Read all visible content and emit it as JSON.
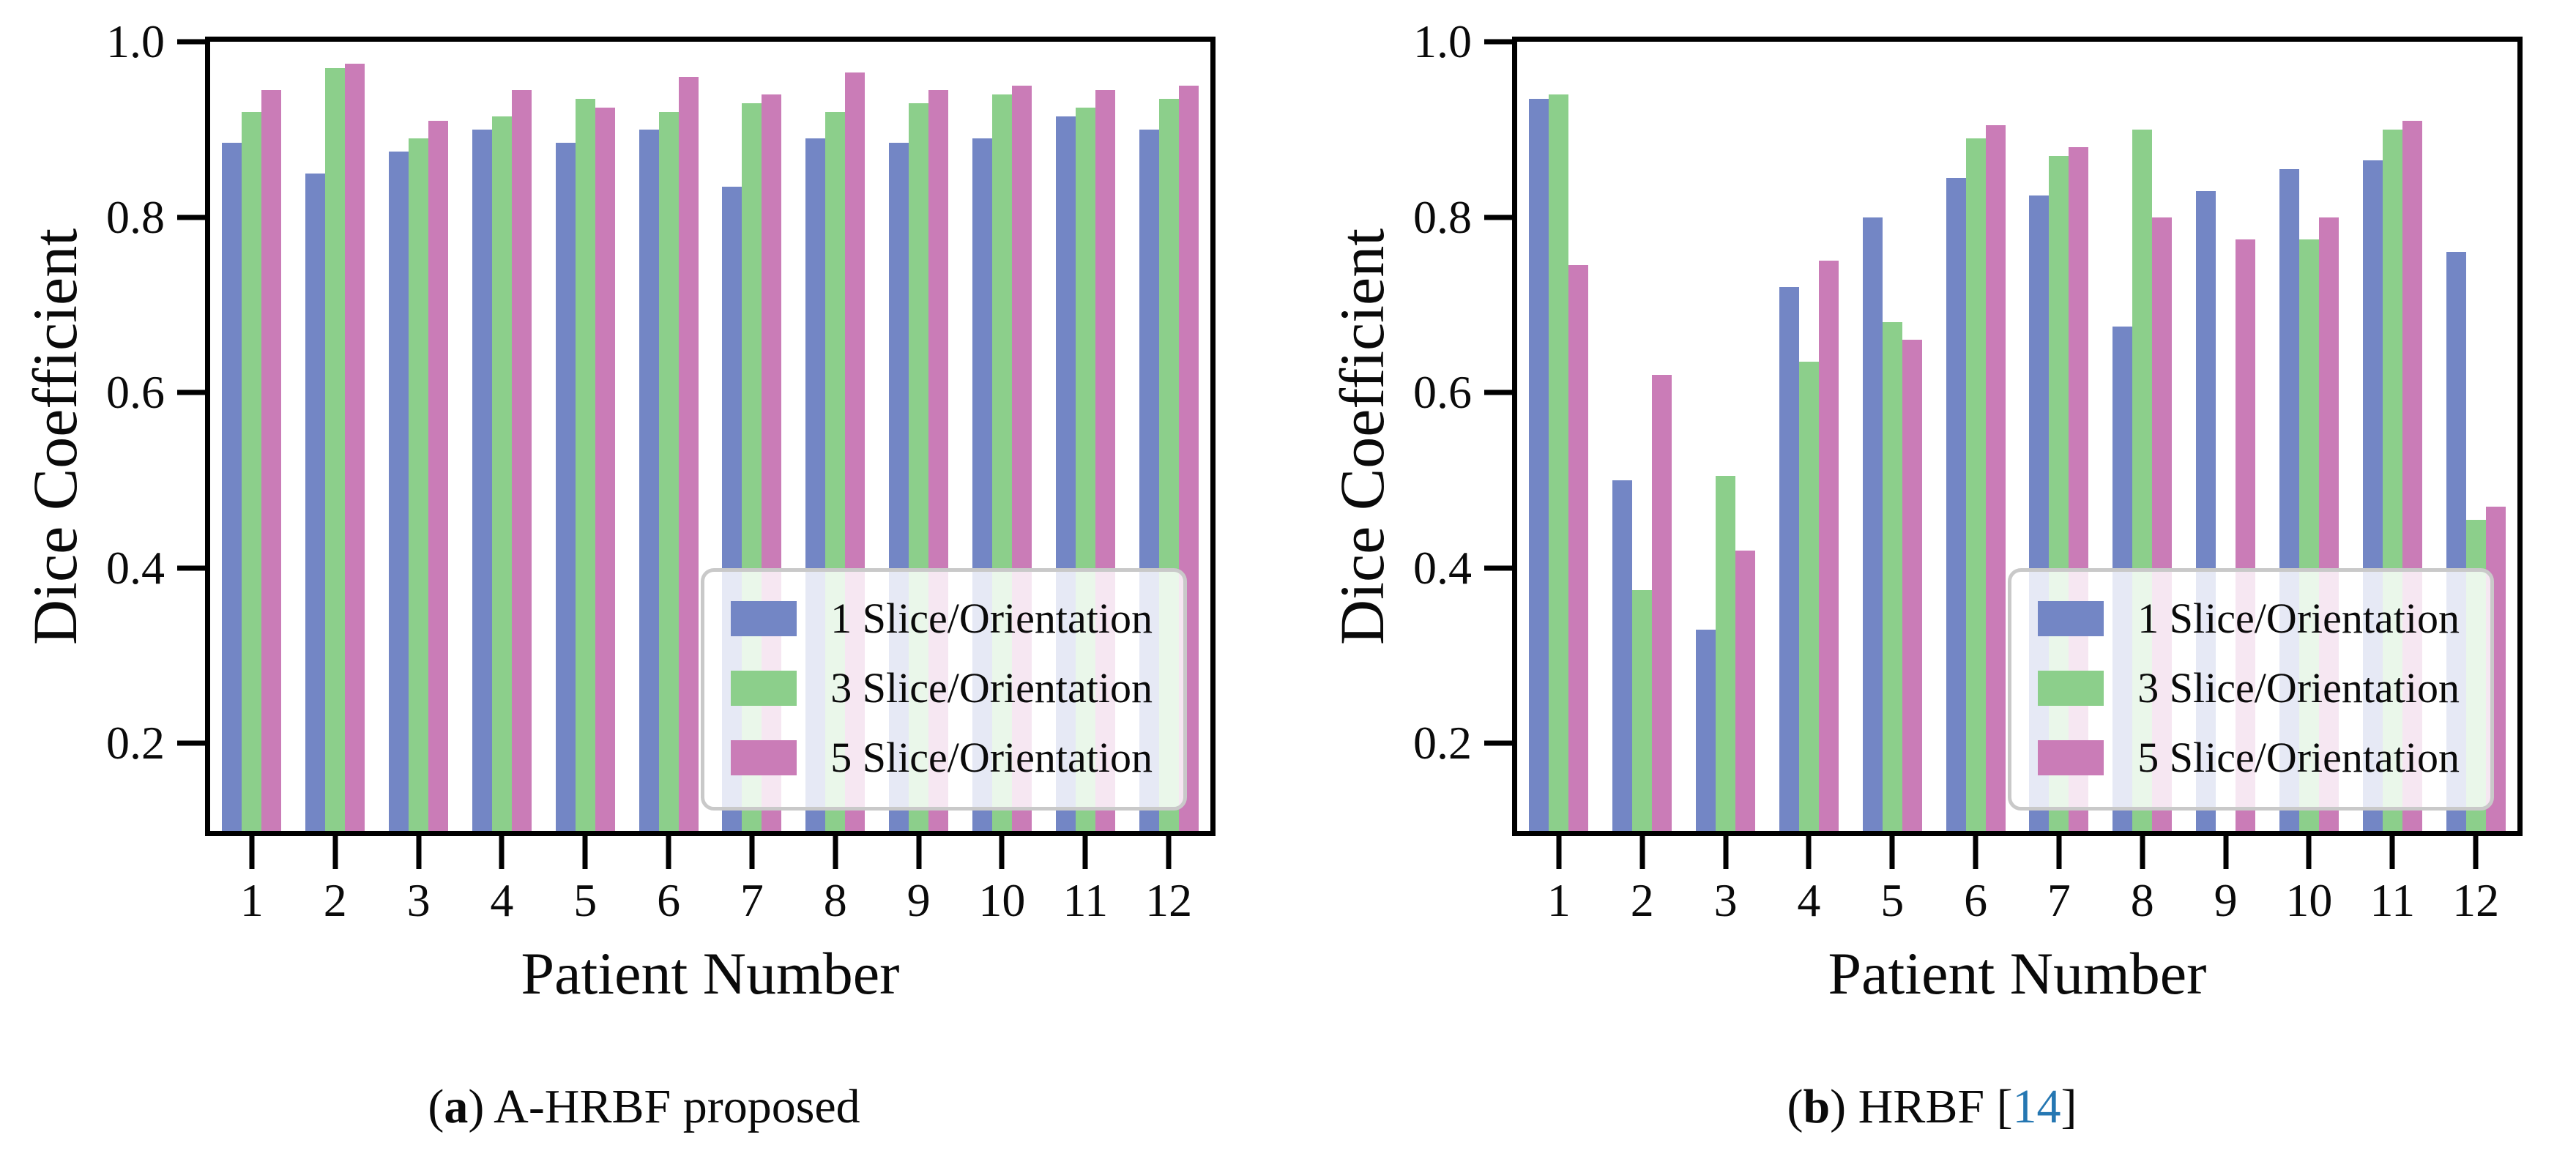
{
  "punct": {
    "open_paren": "(",
    "close_paren": ") ",
    "open_bracket": " [",
    "close_bracket": "]"
  },
  "captions": {
    "a": {
      "letter": "a",
      "text": "A-HRBF proposed"
    },
    "b": {
      "letter": "b",
      "text": "HRBF",
      "citation_number": "14"
    }
  },
  "colors": {
    "series_1_slice": "#7386c5",
    "series_3_slice": "#8ccf8b",
    "series_5_slice": "#ca7cb7",
    "legend_border": "#c9c9c9",
    "citation_blue": "#2577b2",
    "axis_black": "#000000"
  },
  "chart_data": [
    {
      "type": "bar",
      "panel": "a",
      "xlabel": "Patient Number",
      "ylabel": "Dice Coefficient",
      "ylim": [
        0.1,
        1.0
      ],
      "y_ticks": [
        "1.0",
        "0.8",
        "0.6",
        "0.4",
        "0.2"
      ],
      "grid": false,
      "legend_position": "lower right",
      "categories": [
        "1",
        "2",
        "3",
        "4",
        "5",
        "6",
        "7",
        "8",
        "9",
        "10",
        "11",
        "12"
      ],
      "series": [
        {
          "name": "1 Slice/Orientation",
          "color": "#7386c5",
          "values": [
            0.885,
            0.85,
            0.875,
            0.9,
            0.885,
            0.9,
            0.835,
            0.89,
            0.885,
            0.89,
            0.915,
            0.9
          ]
        },
        {
          "name": "3 Slice/Orientation",
          "color": "#8ccf8b",
          "values": [
            0.92,
            0.97,
            0.89,
            0.915,
            0.935,
            0.92,
            0.93,
            0.92,
            0.93,
            0.94,
            0.925,
            0.935
          ]
        },
        {
          "name": "5 Slice/Orientation",
          "color": "#ca7cb7",
          "values": [
            0.945,
            0.975,
            0.91,
            0.945,
            0.925,
            0.96,
            0.94,
            0.965,
            0.945,
            0.95,
            0.945,
            0.95
          ]
        }
      ]
    },
    {
      "type": "bar",
      "panel": "b",
      "xlabel": "Patient Number",
      "ylabel": "Dice Coefficient",
      "ylim": [
        0.1,
        1.0
      ],
      "y_ticks": [
        "1.0",
        "0.8",
        "0.6",
        "0.4",
        "0.2"
      ],
      "grid": false,
      "legend_position": "lower right",
      "categories": [
        "1",
        "2",
        "3",
        "4",
        "5",
        "6",
        "7",
        "8",
        "9",
        "10",
        "11",
        "12"
      ],
      "series": [
        {
          "name": "1 Slice/Orientation",
          "color": "#7386c5",
          "values": [
            0.935,
            0.5,
            0.33,
            0.72,
            0.8,
            0.845,
            0.825,
            0.675,
            0.83,
            0.855,
            0.865,
            0.76
          ]
        },
        {
          "name": "3 Slice/Orientation",
          "color": "#8ccf8b",
          "values": [
            0.94,
            0.375,
            0.505,
            0.635,
            0.68,
            0.89,
            0.87,
            0.9,
            null,
            0.775,
            0.9,
            0.455
          ]
        },
        {
          "name": "5 Slice/Orientation",
          "color": "#ca7cb7",
          "values": [
            0.745,
            0.62,
            0.42,
            0.75,
            0.66,
            0.905,
            0.88,
            0.8,
            0.775,
            0.8,
            0.91,
            0.47
          ]
        }
      ]
    }
  ]
}
